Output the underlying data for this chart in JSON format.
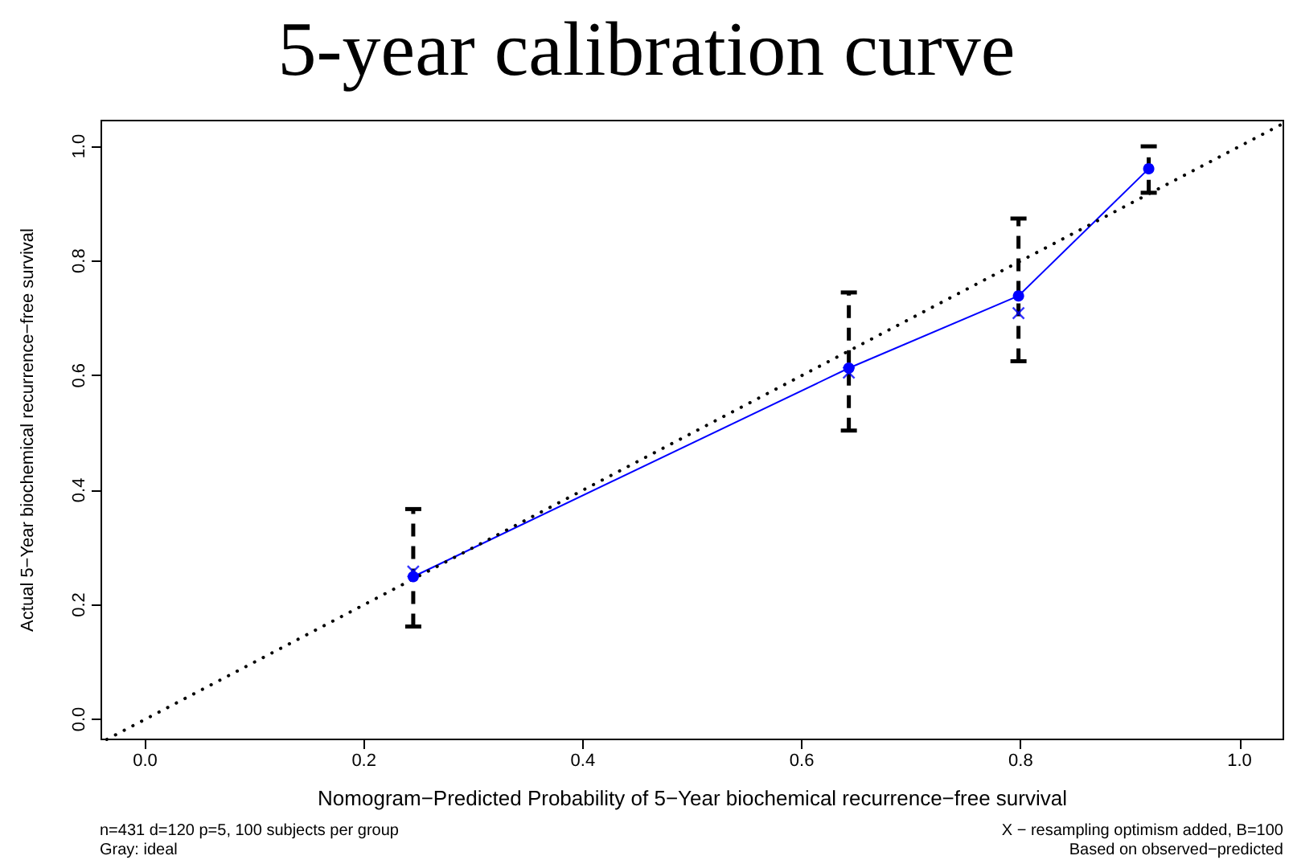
{
  "chart_data": {
    "type": "line",
    "title": "5-year calibration curve",
    "xlabel": "Nomogram−Predicted Probability of 5−Year biochemical recurrence−free survival",
    "ylabel": "Actual 5−Year biochemical recurrence−free survival",
    "annotations": [
      "n=431 d=120 p=5, 100 subjects per group",
      "Gray: ideal",
      "X − resampling optimism added, B=100",
      "Based on observed−predicted"
    ],
    "xlim": [
      -0.04,
      1.04
    ],
    "ylim": [
      -0.035,
      1.045
    ],
    "xticks": [
      {
        "value": 0,
        "label": "0.0"
      },
      0.2,
      0.4,
      0.6,
      0.8,
      {
        "value": 1,
        "label": "1.0"
      }
    ],
    "yticks": [
      {
        "value": 0,
        "label": "0.0"
      },
      0.2,
      0.4,
      0.6,
      0.8,
      {
        "value": 1,
        "label": "1.0"
      }
    ],
    "grid": false,
    "series": [
      {
        "color": "#0000ff",
        "marker": "circle",
        "line_style": "solid",
        "x": [
          0.245,
          0.643,
          0.798,
          0.917
        ],
        "values": [
          0.249,
          0.613,
          0.739,
          0.961
        ],
        "errors": [
          [
            0.162,
            0.367
          ],
          [
            0.504,
            0.745
          ],
          [
            0.625,
            0.874
          ],
          [
            0.919,
            1.0
          ]
        ]
      },
      {
        "type": "scatter",
        "color": "#0000ff",
        "marker": "cross",
        "x": [
          0.245,
          0.643,
          0.798
        ],
        "values": [
          0.258,
          0.605,
          0.709
        ]
      },
      {
        "color": "#000000",
        "marker": "none",
        "line_style": "dotted",
        "x": [
          -0.035,
          1.04
        ],
        "values": [
          -0.035,
          1.04
        ]
      }
    ]
  }
}
